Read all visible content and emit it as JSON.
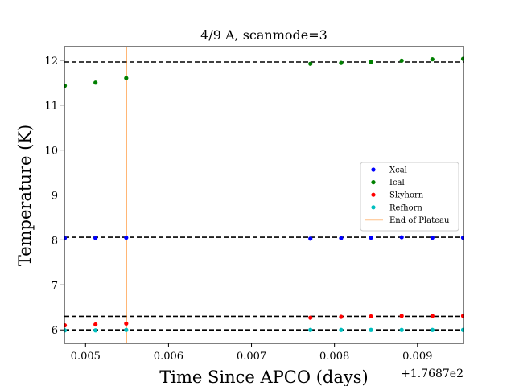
{
  "chart_data": {
    "type": "scatter",
    "title": "4/9 A, scanmode=3",
    "xlabel": "Time Since APCO (days)",
    "ylabel": "Temperature (K)",
    "x_offset_label": "+1.7687e2",
    "xlim": [
      0.004745,
      0.009555
    ],
    "ylim": [
      5.7,
      12.3
    ],
    "xticks": [
      0.005,
      0.006,
      0.007,
      0.008,
      0.009
    ],
    "xtick_labels": [
      "0.005",
      "0.006",
      "0.007",
      "0.008",
      "0.009"
    ],
    "yticks": [
      6,
      7,
      8,
      9,
      10,
      11,
      12
    ],
    "ytick_labels": [
      "6",
      "7",
      "8",
      "9",
      "10",
      "11",
      "12"
    ],
    "grid": false,
    "legend_position": "center-right",
    "series": [
      {
        "name": "Xcal",
        "color": "#0000ff",
        "x": [
          0.00475,
          0.00512,
          0.00549,
          0.00771,
          0.00808,
          0.00844,
          0.00881,
          0.00918,
          0.00955
        ],
        "y": [
          8.04,
          8.04,
          8.05,
          8.03,
          8.04,
          8.05,
          8.06,
          8.05,
          8.05
        ]
      },
      {
        "name": "Ical",
        "color": "#008000",
        "x": [
          0.00475,
          0.00512,
          0.00549,
          0.00771,
          0.00808,
          0.00844,
          0.00881,
          0.00918,
          0.00955
        ],
        "y": [
          11.43,
          11.5,
          11.6,
          11.92,
          11.94,
          11.96,
          11.99,
          12.02,
          12.03
        ]
      },
      {
        "name": "Skyhorn",
        "color": "#ff0000",
        "x": [
          0.00475,
          0.00512,
          0.00549,
          0.00771,
          0.00808,
          0.00844,
          0.00881,
          0.00918,
          0.00955
        ],
        "y": [
          6.1,
          6.12,
          6.14,
          6.27,
          6.29,
          6.3,
          6.31,
          6.31,
          6.31
        ]
      },
      {
        "name": "Refhorn",
        "color": "#00bfbf",
        "x": [
          0.00475,
          0.00512,
          0.00549,
          0.00771,
          0.00808,
          0.00844,
          0.00881,
          0.00918,
          0.00955
        ],
        "y": [
          5.99,
          5.99,
          6.0,
          6.0,
          6.0,
          6.0,
          6.0,
          6.0,
          6.0
        ]
      }
    ],
    "hlines": [
      {
        "y": 11.96,
        "color": "#000000",
        "style": "dashed"
      },
      {
        "y": 8.06,
        "color": "#000000",
        "style": "dashed"
      },
      {
        "y": 6.3,
        "color": "#000000",
        "style": "dashed"
      },
      {
        "y": 6.0,
        "color": "#000000",
        "style": "dashed"
      }
    ],
    "vline": {
      "name": "End of Plateau",
      "x": 0.00549,
      "color": "#ff7f0e"
    }
  }
}
